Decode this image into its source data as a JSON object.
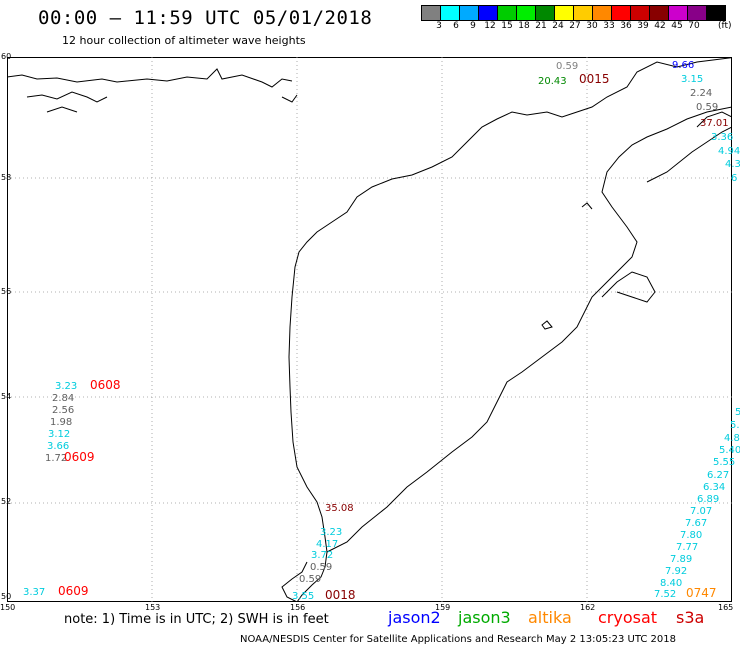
{
  "header": {
    "title": "00:00 – 11:59 UTC 05/01/2018",
    "subtitle": "12 hour collection of altimeter wave heights"
  },
  "colorbar": {
    "unit": "(ft)",
    "labels": [
      "3",
      "6",
      "9",
      "12",
      "15",
      "18",
      "21",
      "24",
      "27",
      "30",
      "33",
      "36",
      "39",
      "42",
      "45",
      "70"
    ],
    "colors": [
      "#808080",
      "#00ffff",
      "#00aaff",
      "#0000ff",
      "#00cc00",
      "#00ee00",
      "#008800",
      "#ffff00",
      "#ffcc00",
      "#ff8800",
      "#ff0000",
      "#cc0000",
      "#880000",
      "#cc00cc",
      "#880088",
      "#000000"
    ]
  },
  "axes": {
    "x_ticks": [
      "150",
      "153",
      "156",
      "159",
      "162",
      "165"
    ],
    "y_ticks": [
      "60",
      "58",
      "56",
      "54",
      "52",
      "50"
    ]
  },
  "observations": [
    {
      "text": "0.59",
      "color": "#808080"
    },
    {
      "text": "20.43",
      "color": "#008800"
    },
    {
      "text": "0015",
      "color": "#880000"
    },
    {
      "text": "9.66",
      "color": "#0000ff"
    },
    {
      "text": "3.15",
      "color": "#00ccdd"
    },
    {
      "text": "2.24",
      "color": "#606060"
    },
    {
      "text": "0.59",
      "color": "#606060"
    },
    {
      "text": "37.01",
      "color": "#880000"
    },
    {
      "text": "3.36",
      "color": "#00ccdd"
    },
    {
      "text": "4.94",
      "color": "#00ccdd"
    },
    {
      "text": "4.3",
      "color": "#00ccdd"
    },
    {
      "text": "6",
      "color": "#00ccdd"
    },
    {
      "text": "3.23",
      "color": "#00ccdd"
    },
    {
      "text": "0608",
      "color": "#ff0000"
    },
    {
      "text": "2.84",
      "color": "#606060"
    },
    {
      "text": "2.56",
      "color": "#606060"
    },
    {
      "text": "1.98",
      "color": "#606060"
    },
    {
      "text": "3.12",
      "color": "#00ccdd"
    },
    {
      "text": "3.66",
      "color": "#00ccdd"
    },
    {
      "text": "1.72",
      "color": "#606060"
    },
    {
      "text": "0609",
      "color": "#ff0000"
    },
    {
      "text": "35.08",
      "color": "#880000"
    },
    {
      "text": "3.23",
      "color": "#00ccdd"
    },
    {
      "text": "4.17",
      "color": "#00ccdd"
    },
    {
      "text": "3.72",
      "color": "#00ccdd"
    },
    {
      "text": "0.59",
      "color": "#606060"
    },
    {
      "text": "0.59",
      "color": "#606060"
    },
    {
      "text": "3.55",
      "color": "#00ccdd"
    },
    {
      "text": "0018",
      "color": "#880000"
    },
    {
      "text": "3.37",
      "color": "#00ccdd"
    },
    {
      "text": "0609",
      "color": "#ff0000"
    },
    {
      "text": "5",
      "color": "#00ccdd"
    },
    {
      "text": "5.",
      "color": "#00ccdd"
    },
    {
      "text": "4.8",
      "color": "#00ccdd"
    },
    {
      "text": "5.40",
      "color": "#00ccdd"
    },
    {
      "text": "5.55",
      "color": "#00ccdd"
    },
    {
      "text": "6.27",
      "color": "#00ccdd"
    },
    {
      "text": "6.34",
      "color": "#00ccdd"
    },
    {
      "text": "6.89",
      "color": "#00ccdd"
    },
    {
      "text": "7.07",
      "color": "#00ccdd"
    },
    {
      "text": "7.67",
      "color": "#00ccdd"
    },
    {
      "text": "7.80",
      "color": "#00ccdd"
    },
    {
      "text": "7.77",
      "color": "#00ccdd"
    },
    {
      "text": "7.89",
      "color": "#00ccdd"
    },
    {
      "text": "7.92",
      "color": "#00ccdd"
    },
    {
      "text": "8.40",
      "color": "#00ccdd"
    },
    {
      "text": "7.52",
      "color": "#00ccdd"
    },
    {
      "text": "0747",
      "color": "#ff8800"
    }
  ],
  "legend": {
    "note": "note:  1) Time is in UTC;  2) SWH is in feet",
    "satellites": [
      {
        "name": "jason2",
        "color": "#0000ff"
      },
      {
        "name": "jason3",
        "color": "#00aa00"
      },
      {
        "name": "altika",
        "color": "#ff8800"
      },
      {
        "name": "cryosat",
        "color": "#ff0000"
      },
      {
        "name": "s3a",
        "color": "#cc0000"
      }
    ]
  },
  "footer": "NOAA/NESDIS Center for Satellite Applications and Research    May  2 13:05:23 UTC 2018"
}
